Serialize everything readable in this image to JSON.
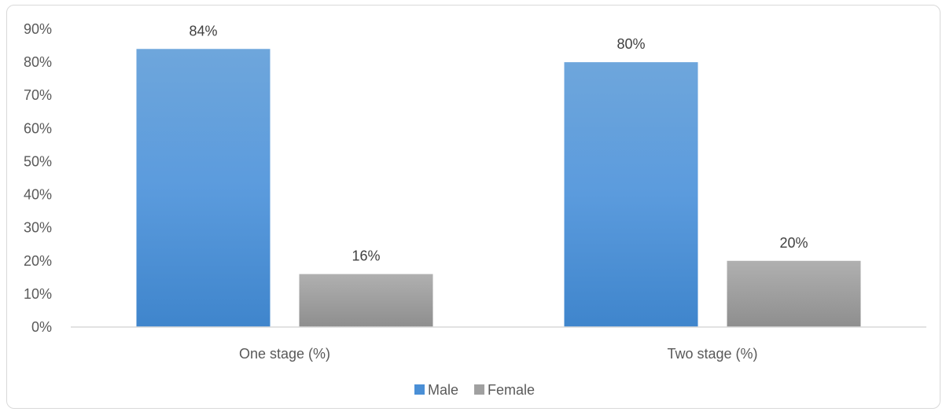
{
  "chart_data": {
    "type": "bar",
    "title": "",
    "xlabel": "",
    "ylabel": "",
    "categories": [
      "One stage (%)",
      "Two stage (%)"
    ],
    "series": [
      {
        "name": "Male",
        "values": [
          84,
          80
        ],
        "labels": [
          "84%",
          "80%"
        ],
        "color": "#4a8fd6"
      },
      {
        "name": "Female",
        "values": [
          16,
          20
        ],
        "labels": [
          "16%",
          "20%"
        ],
        "color": "#a0a0a0"
      }
    ],
    "ylim": [
      0,
      90
    ],
    "y_ticks": [
      0,
      10,
      20,
      30,
      40,
      50,
      60,
      70,
      80,
      90
    ],
    "y_tick_labels": [
      "0%",
      "10%",
      "20%",
      "30%",
      "40%",
      "50%",
      "60%",
      "70%",
      "80%",
      "90%"
    ],
    "grid": false,
    "legend_position": "bottom"
  }
}
